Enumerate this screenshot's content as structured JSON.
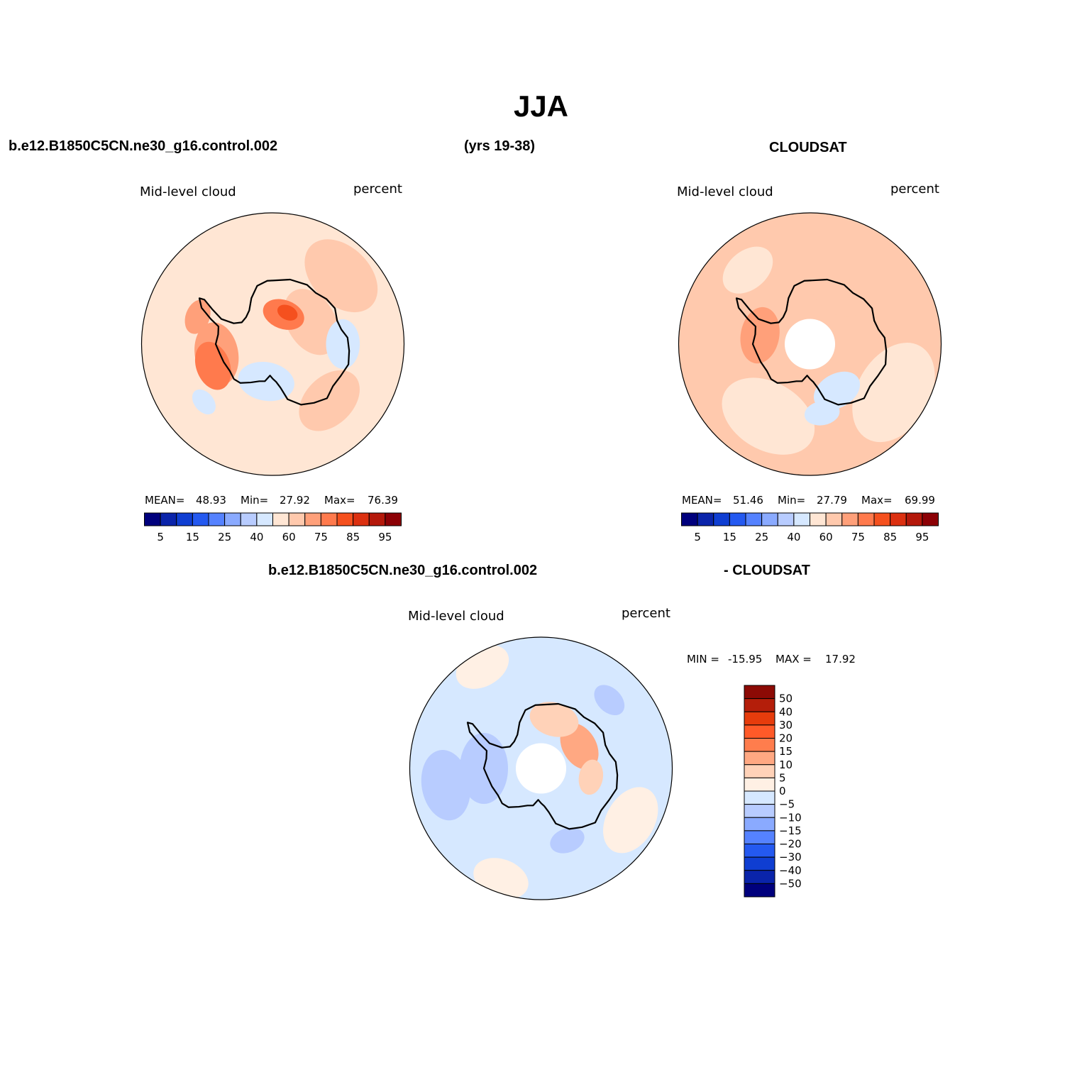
{
  "page": {
    "title": "JJA",
    "case_name": "b.e12.B1850C5CN.ne30_g16.control.002",
    "years": "(yrs 19-38)",
    "obs_name": "CLOUDSAT",
    "diff_case_name": "b.e12.B1850C5CN.ne30_g16.control.002",
    "diff_obs_name": "- CLOUDSAT"
  },
  "colors": {
    "coast": "#000000",
    "mask": "#ffffff",
    "abs_palette": [
      "#00007d",
      "#0a24aa",
      "#0f3ed2",
      "#2459f0",
      "#5582ff",
      "#8aaaff",
      "#b8ccff",
      "#d6e8ff",
      "#ffe6d4",
      "#ffc9ad",
      "#ffa07a",
      "#ff7a4d",
      "#f5501e",
      "#dc3010",
      "#b4180a",
      "#8c0005"
    ],
    "diff_palette": [
      "#00007d",
      "#0a24aa",
      "#0f3ed2",
      "#2459f0",
      "#5582ff",
      "#8aaaff",
      "#b8ccff",
      "#d6e8ff",
      "#fff0e4",
      "#ffd2b8",
      "#ffa882",
      "#ff7d4d",
      "#ff5a28",
      "#e63c0c",
      "#b41e0a",
      "#8c0a05"
    ]
  },
  "chart_data": [
    {
      "type": "heatmap",
      "panel": "model",
      "projection": "south-polar stereographic",
      "field": "Mid-level cloud",
      "units": "percent",
      "stats": {
        "mean_label": "MEAN=",
        "mean": "48.93",
        "min_label": "Min=",
        "min": "27.92",
        "max_label": "Max=",
        "max": "76.39"
      },
      "colorbar": {
        "orientation": "horizontal",
        "levels": [
          5,
          10,
          15,
          20,
          25,
          30,
          35,
          40,
          50,
          60,
          65,
          70,
          75,
          80,
          85,
          90,
          95
        ],
        "tick_labels": [
          "5",
          "15",
          "25",
          "40",
          "60",
          "75",
          "85",
          "95"
        ]
      },
      "background_value": 45,
      "regions": [
        {
          "lon": 45,
          "colat": 30,
          "r": 12,
          "v": 55
        },
        {
          "lon": 135,
          "colat": 25,
          "r": 10,
          "v": 55
        },
        {
          "lon": -100,
          "colat": 18,
          "r": 9,
          "v": 62
        },
        {
          "lon": 60,
          "colat": 14,
          "r": 10,
          "v": 58
        },
        {
          "lon": -170,
          "colat": 12,
          "r": 8,
          "v": 35
        },
        {
          "lon": 20,
          "colat": 10,
          "r": 6,
          "v": 67
        },
        {
          "lon": 25,
          "colat": 11,
          "r": 3,
          "v": 72
        },
        {
          "lon": -110,
          "colat": 20,
          "r": 7,
          "v": 68
        },
        {
          "lon": -70,
          "colat": 25,
          "r": 5,
          "v": 62
        },
        {
          "lon": 90,
          "colat": 22,
          "r": 7,
          "v": 38
        },
        {
          "lon": -130,
          "colat": 28,
          "r": 4,
          "v": 35
        }
      ]
    },
    {
      "type": "heatmap",
      "panel": "observations",
      "projection": "south-polar stereographic",
      "field": "Mid-level cloud",
      "units": "percent",
      "stats": {
        "mean_label": "MEAN=",
        "mean": "51.46",
        "min_label": "Min=",
        "min": "27.79",
        "max_label": "Max=",
        "max": "69.99"
      },
      "colorbar": {
        "orientation": "horizontal",
        "levels": [
          5,
          10,
          15,
          20,
          25,
          30,
          35,
          40,
          50,
          60,
          65,
          70,
          75,
          80,
          85,
          90,
          95
        ],
        "tick_labels": [
          "5",
          "15",
          "25",
          "40",
          "60",
          "75",
          "85",
          "95"
        ]
      },
      "background_value": 52,
      "no_data_colat": 8,
      "regions": [
        {
          "lon": 120,
          "colat": 30,
          "r": 15,
          "v": 45
        },
        {
          "lon": -150,
          "colat": 26,
          "r": 14,
          "v": 44
        },
        {
          "lon": -40,
          "colat": 30,
          "r": 8,
          "v": 45
        },
        {
          "lon": -80,
          "colat": 16,
          "r": 8,
          "v": 60
        },
        {
          "lon": 30,
          "colat": 18,
          "r": 8,
          "v": 57
        },
        {
          "lon": 150,
          "colat": 17,
          "r": 7,
          "v": 35
        },
        {
          "lon": 170,
          "colat": 22,
          "r": 5,
          "v": 36
        }
      ]
    },
    {
      "type": "heatmap",
      "panel": "difference",
      "projection": "south-polar stereographic",
      "field": "Mid-level cloud",
      "units": "percent",
      "stats": {
        "min_label": "MIN = ",
        "min": "-15.95",
        "max_label": "MAX = ",
        "max": "17.92"
      },
      "colorbar": {
        "orientation": "vertical",
        "levels": [
          -50,
          -40,
          -30,
          -20,
          -15,
          -10,
          -5,
          0,
          5,
          10,
          15,
          20,
          30,
          40,
          50
        ],
        "tick_labels": [
          "50",
          "40",
          "30",
          "20",
          "15",
          "10",
          "5",
          "0",
          "−5",
          "−10",
          "−15",
          "−20",
          "−30",
          "−40",
          "−50"
        ]
      },
      "background_value": -3,
      "no_data_colat": 8,
      "regions": [
        {
          "lon": -90,
          "colat": 18,
          "r": 10,
          "v": -9
        },
        {
          "lon": -100,
          "colat": 30,
          "r": 10,
          "v": -7
        },
        {
          "lon": 60,
          "colat": 14,
          "r": 7,
          "v": 11
        },
        {
          "lon": 15,
          "colat": 16,
          "r": 7,
          "v": 9
        },
        {
          "lon": 100,
          "colat": 16,
          "r": 5,
          "v": 8
        },
        {
          "lon": 120,
          "colat": 32,
          "r": 10,
          "v": 4
        },
        {
          "lon": -160,
          "colat": 36,
          "r": 8,
          "v": 3
        },
        {
          "lon": -30,
          "colat": 36,
          "r": 8,
          "v": 3
        },
        {
          "lon": 45,
          "colat": 30,
          "r": 5,
          "v": -8
        },
        {
          "lon": 160,
          "colat": 24,
          "r": 5,
          "v": -9
        }
      ]
    }
  ]
}
